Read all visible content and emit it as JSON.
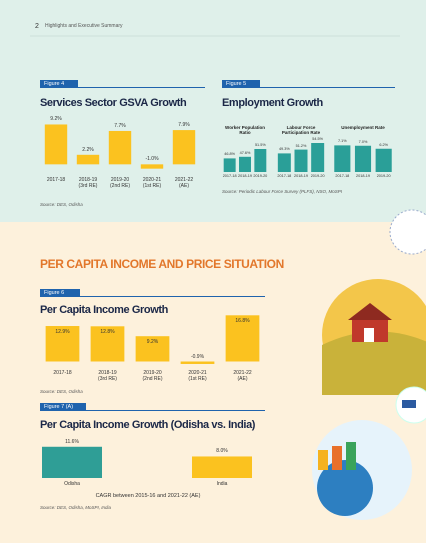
{
  "header": {
    "page_number": "2",
    "title": "Highlights and Executive Summary"
  },
  "section_title": "PER CAPITA INCOME AND PRICE SITUATION",
  "chart_data": [
    {
      "type": "bar",
      "figure": "Figure 4",
      "title": "Services Sector GSVA Growth",
      "categories": [
        "2017-18",
        "2018-19\n(3rd RE)",
        "2019-20\n(2nd RE)",
        "2020-21\n(1st RE)",
        "2021-22\n(AE)"
      ],
      "values": [
        9.2,
        2.2,
        7.7,
        -1.0,
        7.9
      ],
      "value_labels": [
        "9.2%",
        "2.2%",
        "7.7%",
        "-1.0%",
        "7.9%"
      ],
      "color": "#fbc21f",
      "ylim": [
        -2,
        10
      ],
      "source": "Source: DES, Odisha"
    },
    {
      "type": "panel_bar",
      "figure": "Figure 5",
      "title": "Employment Growth",
      "color": "#2a9f98",
      "panels": [
        {
          "title": "Worker Population\nRatio",
          "categories": [
            "2017-18",
            "2018-19",
            "2019-20"
          ],
          "values": [
            46.8,
            47.6,
            51.5
          ],
          "value_labels": [
            "46.8%",
            "47.6%",
            "51.5%"
          ],
          "ylim": [
            40,
            55
          ]
        },
        {
          "title": "Labour Force\nParticipation Rate",
          "categories": [
            "2017-18",
            "2018-19",
            "2019-20"
          ],
          "values": [
            49.3,
            51.2,
            54.5
          ],
          "value_labels": [
            "49.3%",
            "51.2%",
            "54.5%"
          ],
          "ylim": [
            40,
            55
          ]
        },
        {
          "title": "Unemployment Rate",
          "categories": [
            "2017-18",
            "2018-19",
            "2019-20"
          ],
          "values": [
            7.1,
            7.0,
            6.2
          ],
          "value_labels": [
            "7.1%",
            "7.0%",
            "6.2%"
          ],
          "ylim": [
            0,
            8
          ]
        }
      ],
      "source": "Source: Periodic Labour Force Survey (PLFS), NSO, MoSPI"
    },
    {
      "type": "bar",
      "figure": "Figure 6",
      "title": "Per Capita Income Growth",
      "categories": [
        "2017-18",
        "2018-19\n(3rd RE)",
        "2019-20\n(2nd RE)",
        "2020-21\n(1st RE)",
        "2021-22\n(AE)"
      ],
      "values": [
        12.9,
        12.8,
        9.2,
        -0.9,
        16.8
      ],
      "value_labels": [
        "12.9%",
        "12.8%",
        "9.2%",
        "-0.9%",
        "16.8%"
      ],
      "color": "#fbc21f",
      "ylim": [
        -2,
        18
      ],
      "source": "Source: DES, Odisha"
    },
    {
      "type": "bar",
      "figure": "Figure 7 (A)",
      "title": "Per Capita Income Growth (Odisha vs. India)",
      "categories": [
        "Odisha",
        "India"
      ],
      "values": [
        11.6,
        8.0
      ],
      "value_labels": [
        "11.6%",
        "8.0%"
      ],
      "colors": [
        "#2f9e96",
        "#fbc21f"
      ],
      "ylim": [
        0,
        13
      ],
      "xlabel": "CAGR between 2015-16 and 2021-22 (AE)",
      "source": "Source: DES, Odisha, MoSPI, India"
    }
  ]
}
